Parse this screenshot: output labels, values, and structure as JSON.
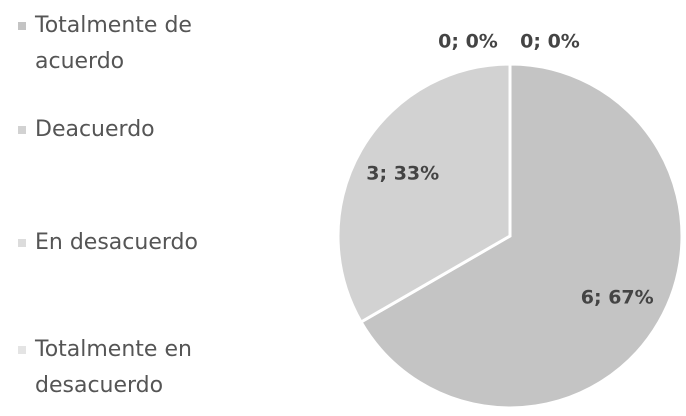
{
  "chart_data": {
    "type": "pie",
    "categories": [
      "Totalmente de acuerdo",
      "Deacuerdo",
      "En desacuerdo",
      "Totalmente en desacuerdo"
    ],
    "values": [
      6,
      3,
      0,
      0
    ],
    "value_labels": [
      "6; 67%",
      "3; 33%",
      "0; 0%",
      "0; 0%"
    ],
    "colors": [
      "#c4c4c4",
      "#d2d2d2",
      "#dcdcdc",
      "#e4e4e4"
    ],
    "legend": "left"
  }
}
